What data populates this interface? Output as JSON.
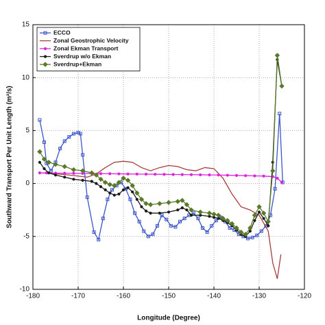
{
  "chart_data": {
    "type": "line",
    "x_label": "Longitude (Degree)",
    "y_label": "Southward Transport Per Unit Length (m²/s)",
    "xlim": [
      -180,
      -120
    ],
    "xticks": [
      -180,
      -170,
      -160,
      -150,
      -140,
      -130,
      -120
    ],
    "ylim": [
      -10,
      15
    ],
    "yticks": [
      -10,
      -5,
      0,
      5,
      10,
      15
    ],
    "grid": true,
    "legend": "upper left",
    "series": [
      {
        "name": "ECCO",
        "color": "#3a55c8",
        "marker": "square",
        "x": [
          -178.5,
          -177.5,
          -177,
          -176,
          -175,
          -174,
          -173,
          -172,
          -171,
          -170,
          -169.5,
          -169,
          -168,
          -166.5,
          -165.5,
          -164.5,
          -163.5,
          -162.5,
          -161.5,
          -160.5,
          -159.5,
          -158.5,
          -157.5,
          -156.5,
          -155.5,
          -154.5,
          -153.5,
          -152.5,
          -151.5,
          -150.5,
          -149.5,
          -148.5,
          -147.5,
          -146.5,
          -145.5,
          -144.5,
          -143.5,
          -142.5,
          -141.5,
          -140.5,
          -139.5,
          -138.5,
          -137.5,
          -136.5,
          -135.5,
          -134.5,
          -133.5,
          -132.5,
          -131.5,
          -130.5,
          -129.5,
          -128.5,
          -127.5,
          -126.5,
          -125.5,
          -124.8
        ],
        "values": [
          6,
          3.9,
          1.9,
          1.2,
          2.0,
          3.3,
          4.0,
          4.4,
          4.7,
          4.8,
          4.7,
          2.7,
          -1.3,
          -4.6,
          -5.3,
          -3.3,
          -1.5,
          -0.6,
          -0.2,
          0.1,
          -0.5,
          -1.5,
          -2.8,
          -3.6,
          -4.5,
          -5.0,
          -4.8,
          -4.0,
          -3.0,
          -3.4,
          -4.0,
          -4.1,
          -3.6,
          -3.3,
          -3.0,
          -2.8,
          -3.3,
          -4.2,
          -4.6,
          -4.0,
          -3.5,
          -3.2,
          -3.6,
          -4.2,
          -4.4,
          -4.8,
          -5.0,
          -5.2,
          -5.1,
          -4.9,
          -4.5,
          -4.0,
          -3.0,
          -0.5,
          6.6,
          0.1
        ]
      },
      {
        "name": "Zonal Geostrophic Velocity",
        "color": "#a83a3a",
        "marker": "none",
        "x": [
          -178.5,
          -176,
          -172,
          -168,
          -166,
          -164,
          -162,
          -160,
          -158,
          -156,
          -154,
          -152,
          -150,
          -148,
          -146,
          -144,
          -142,
          -140,
          -138,
          -136,
          -134,
          -132,
          -130,
          -128,
          -127,
          -126,
          -125.2
        ],
        "values": [
          1.0,
          0.95,
          0.8,
          0.6,
          0.9,
          1.5,
          2.0,
          2.1,
          2.0,
          1.5,
          1.2,
          1.5,
          1.7,
          1.6,
          1.3,
          1.2,
          1.5,
          1.4,
          0.5,
          -1.0,
          -2.2,
          -2.5,
          -3.0,
          -4.5,
          -7.5,
          -9.0,
          -6.7
        ]
      },
      {
        "name": "Zonal Ekman Transport",
        "color": "#e020e0",
        "marker": "circle",
        "x": [
          -178.5,
          -177,
          -175,
          -173,
          -171,
          -169,
          -167,
          -165,
          -163,
          -161,
          -159,
          -157,
          -155,
          -153,
          -151,
          -149,
          -147,
          -145,
          -143,
          -141,
          -139,
          -137,
          -135,
          -133,
          -131,
          -129,
          -127,
          -126,
          -125
        ],
        "values": [
          1.0,
          1.0,
          0.98,
          0.97,
          0.96,
          0.95,
          0.94,
          0.93,
          0.92,
          0.91,
          0.9,
          0.89,
          0.88,
          0.87,
          0.86,
          0.85,
          0.84,
          0.83,
          0.82,
          0.81,
          0.8,
          0.78,
          0.76,
          0.74,
          0.72,
          0.7,
          0.65,
          0.5,
          0.1
        ]
      },
      {
        "name": "Sverdrup w/o Ekman",
        "color": "#1a1a1a",
        "marker": "circle",
        "x": [
          -178.5,
          -177.5,
          -176.5,
          -175,
          -173,
          -171,
          -169,
          -167,
          -166,
          -165,
          -164,
          -163,
          -162,
          -161,
          -160,
          -159,
          -158,
          -157,
          -156,
          -155,
          -154,
          -152,
          -150,
          -148,
          -147,
          -146,
          -145,
          -143,
          -141,
          -140,
          -139,
          -138,
          -137,
          -136,
          -135,
          -134,
          -133,
          -132,
          -131,
          -130,
          -129,
          -128,
          -127,
          -126,
          -125
        ],
        "values": [
          2.0,
          1.4,
          1.0,
          0.8,
          0.6,
          0.4,
          0.3,
          0.2,
          0.0,
          -0.3,
          -0.6,
          -0.9,
          -1.1,
          -1.0,
          -0.6,
          -0.4,
          -0.8,
          -1.5,
          -2.2,
          -2.6,
          -2.8,
          -2.8,
          -2.7,
          -2.5,
          -2.3,
          -2.5,
          -3.0,
          -3.0,
          -3.1,
          -3.2,
          -3.3,
          -3.5,
          -3.7,
          -4.0,
          -4.4,
          -4.8,
          -5.0,
          -4.5,
          -3.5,
          -2.7,
          -3.3,
          -4.0,
          2.0,
          11.7,
          9.2
        ]
      },
      {
        "name": "Sverdrup+Ekman",
        "color": "#5a7a2a",
        "marker": "diamond",
        "x": [
          -178.5,
          -177.5,
          -176.5,
          -175,
          -173,
          -171,
          -169,
          -167,
          -166,
          -165,
          -164,
          -163,
          -162,
          -161,
          -160,
          -159,
          -158,
          -157,
          -156,
          -155,
          -154,
          -152,
          -150,
          -148,
          -147,
          -146,
          -145,
          -143,
          -141,
          -140,
          -139,
          -138,
          -137,
          -136,
          -135,
          -134,
          -133,
          -132,
          -131,
          -130,
          -129,
          -128,
          -127,
          -126,
          -125
        ],
        "values": [
          3.0,
          2.3,
          2.0,
          1.8,
          1.6,
          1.3,
          1.2,
          1.0,
          0.8,
          0.4,
          0.1,
          -0.1,
          -0.2,
          0.1,
          0.5,
          0.3,
          -0.2,
          -0.9,
          -1.5,
          -1.9,
          -2.0,
          -1.9,
          -1.8,
          -1.7,
          -1.6,
          -2.0,
          -2.5,
          -2.7,
          -2.8,
          -2.9,
          -3.0,
          -3.3,
          -3.5,
          -3.8,
          -4.2,
          -4.6,
          -4.8,
          -4.2,
          -3.0,
          -2.2,
          -2.8,
          -3.6,
          1.2,
          12.1,
          9.2
        ]
      }
    ]
  }
}
